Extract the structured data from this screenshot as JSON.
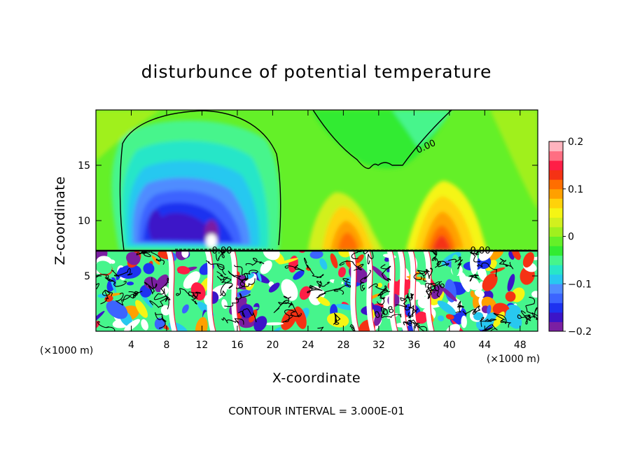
{
  "chart_data": {
    "type": "heatmap",
    "title": "disturbunce of potential temperature",
    "xlabel": "X-coordinate",
    "ylabel": "Z-coordinate",
    "x_unit_label": "(×1000 m)",
    "x_unit_label_right": "(×1000 m)",
    "footnote": "CONTOUR INTERVAL = 3.000E-01",
    "xlim": [
      0,
      50
    ],
    "ylim": [
      0,
      20
    ],
    "x_ticks": [
      4,
      8,
      12,
      16,
      20,
      24,
      28,
      32,
      36,
      40,
      44,
      48
    ],
    "x_tick_labels": [
      "4",
      "8",
      "12",
      "16",
      "20",
      "24",
      "28",
      "32",
      "36",
      "40",
      "44",
      "48"
    ],
    "y_ticks": [
      5,
      10,
      15
    ],
    "y_tick_labels": [
      "5",
      "10",
      "15"
    ],
    "colorbar": {
      "range": [
        -0.2,
        0.2
      ],
      "ticks": [
        0.2,
        0.1,
        0,
        -0.1,
        -0.2
      ],
      "tick_labels": [
        "0.2",
        "0.1",
        "0",
        "−0.1",
        "−0.2"
      ],
      "colors": [
        "#7b1fa2",
        "#3c14c8",
        "#1e32f0",
        "#3c64ff",
        "#508cff",
        "#28c8f0",
        "#28e6c8",
        "#46f58c",
        "#32eb32",
        "#64f028",
        "#a0f01e",
        "#d2f01e",
        "#f5f514",
        "#ffd20a",
        "#ffa000",
        "#ff6e00",
        "#f53214",
        "#ff1e46",
        "#ff6e82",
        "#ffb4be"
      ]
    },
    "contour_interval": 0.3,
    "contour_labels": [
      {
        "text": "0.00",
        "x": 37.5,
        "z": 17.3
      },
      {
        "text": "0.00",
        "x": 14.6,
        "z": 7.3
      },
      {
        "text": "0.00",
        "x": 43.3,
        "z": 7.3
      },
      {
        "text": "0.06",
        "x": 38.8,
        "z": 3.7
      },
      {
        "text": "0.08",
        "x": 32.2,
        "z": 1.6
      }
    ],
    "features": [
      {
        "kind": "negative-max",
        "x": 11.5,
        "z": 11.0,
        "value": -0.17
      },
      {
        "kind": "negative-max",
        "x": 8.0,
        "z": 11.8,
        "value": -0.15
      },
      {
        "kind": "positive-max",
        "x": 27.5,
        "z": 10.2,
        "value": 0.12
      },
      {
        "kind": "positive-max",
        "x": 38.5,
        "z": 10.2,
        "value": 0.13
      },
      {
        "kind": "positive-max",
        "x": 13.5,
        "z": 8.5,
        "value": 0.2
      }
    ],
    "boundary_level_z": 7.3,
    "grid": false,
    "legend_position": "right"
  }
}
